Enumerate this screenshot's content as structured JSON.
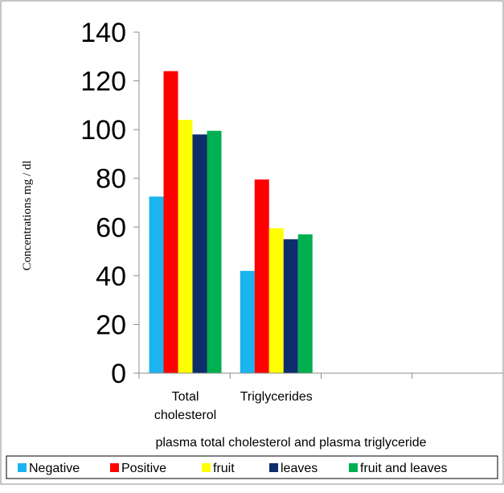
{
  "chart_data": {
    "type": "bar",
    "categories": [
      "Total cholesterol",
      "Triglycerides",
      "",
      ""
    ],
    "category_lines": [
      [
        "Total",
        "cholesterol"
      ],
      [
        "Triglycerides"
      ],
      [],
      []
    ],
    "series": [
      {
        "name": "Negative",
        "color": "#1CB4EE",
        "values": [
          72.5,
          42,
          null,
          null
        ]
      },
      {
        "name": "Positive",
        "color": "#FF0000",
        "values": [
          124,
          79.5,
          null,
          null
        ]
      },
      {
        "name": "fruit",
        "color": "#FFFF00",
        "values": [
          104,
          59.5,
          null,
          null
        ]
      },
      {
        "name": "leaves",
        "color": "#0D2D6B",
        "values": [
          98,
          55,
          null,
          null
        ]
      },
      {
        "name": "fruit and leaves",
        "color": "#00B050",
        "values": [
          99.5,
          57,
          null,
          null
        ]
      }
    ],
    "ylabel": "Concentrations mg / dl",
    "xlabel": "plasma total cholesterol and plasma triglyceride",
    "ylim": [
      0,
      140
    ],
    "yticks": [
      0,
      20,
      40,
      60,
      80,
      100,
      120,
      140
    ],
    "grid": false,
    "legend_position": "bottom"
  }
}
